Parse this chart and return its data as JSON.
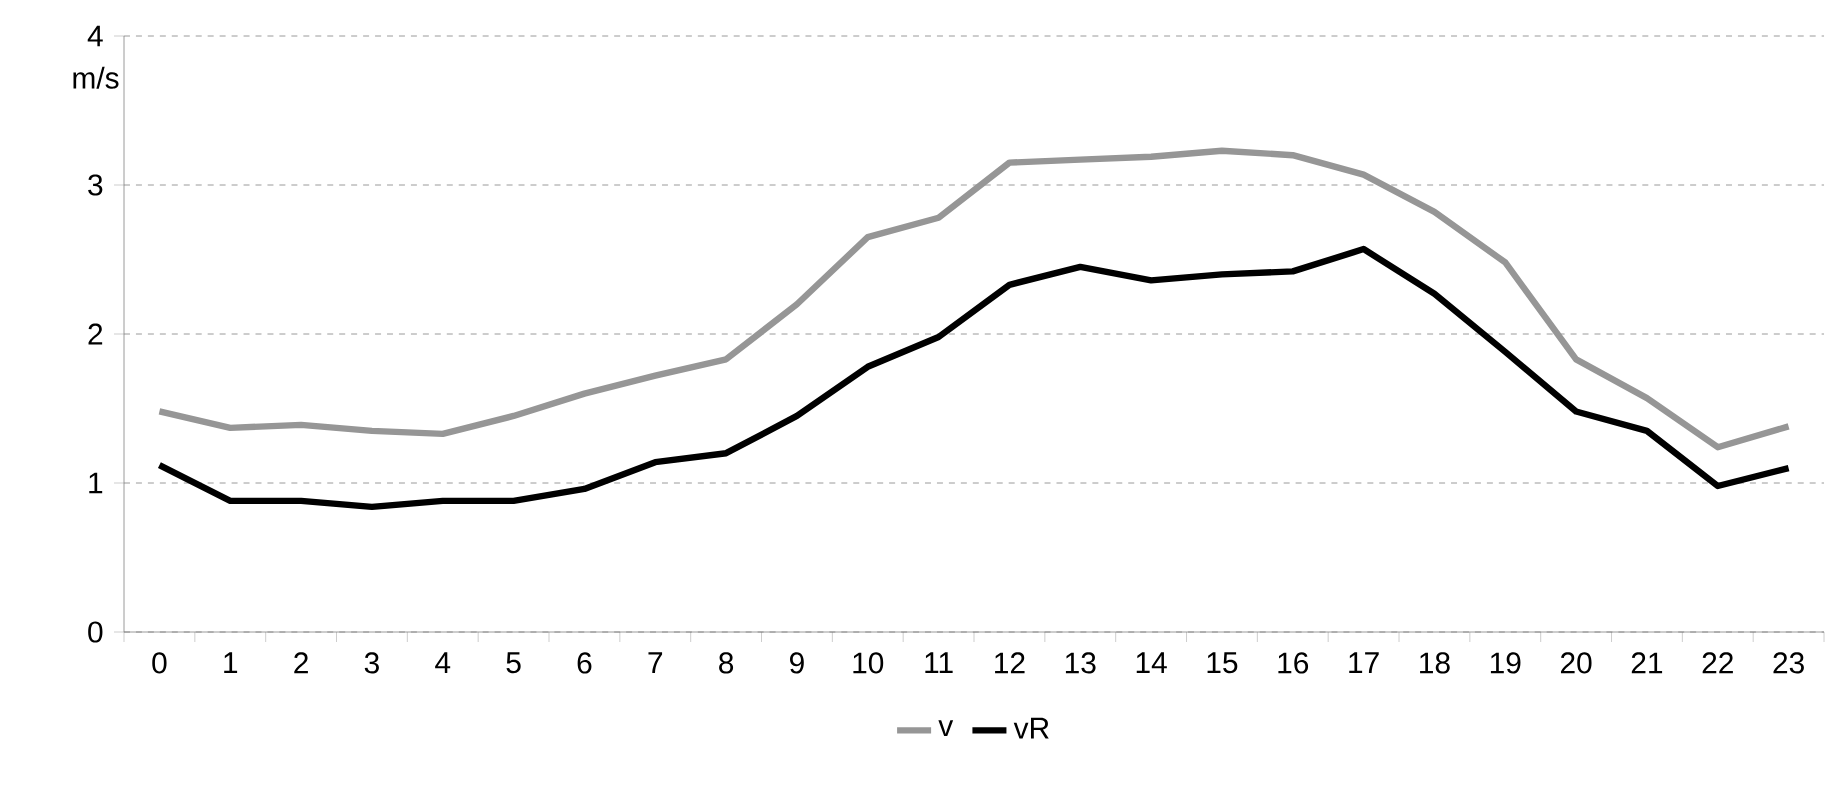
{
  "chart_data": {
    "type": "line",
    "ylabel": "m/s",
    "categories": [
      "0",
      "1",
      "2",
      "3",
      "4",
      "5",
      "6",
      "7",
      "8",
      "9",
      "10",
      "11",
      "12",
      "13",
      "14",
      "15",
      "16",
      "17",
      "18",
      "19",
      "20",
      "21",
      "22",
      "23"
    ],
    "series": [
      {
        "name": "v",
        "color": "#969696",
        "values": [
          1.48,
          1.37,
          1.39,
          1.35,
          1.33,
          1.45,
          1.6,
          1.72,
          1.83,
          2.2,
          2.65,
          2.78,
          3.15,
          3.17,
          3.19,
          3.23,
          3.2,
          3.07,
          2.82,
          2.48,
          1.83,
          1.57,
          1.24,
          1.38
        ]
      },
      {
        "name": "vR",
        "color": "#000000",
        "values": [
          1.12,
          0.88,
          0.88,
          0.84,
          0.88,
          0.88,
          0.96,
          1.14,
          1.2,
          1.45,
          1.78,
          1.98,
          2.33,
          2.45,
          2.36,
          2.4,
          2.42,
          2.57,
          2.27,
          1.88,
          1.48,
          1.35,
          0.98,
          1.1
        ]
      }
    ],
    "ylim": [
      0,
      4
    ],
    "yticks": [
      0,
      1,
      2,
      3,
      4
    ],
    "grid": "y",
    "legend": "bottom",
    "marker": "none",
    "line_style": "solid"
  }
}
